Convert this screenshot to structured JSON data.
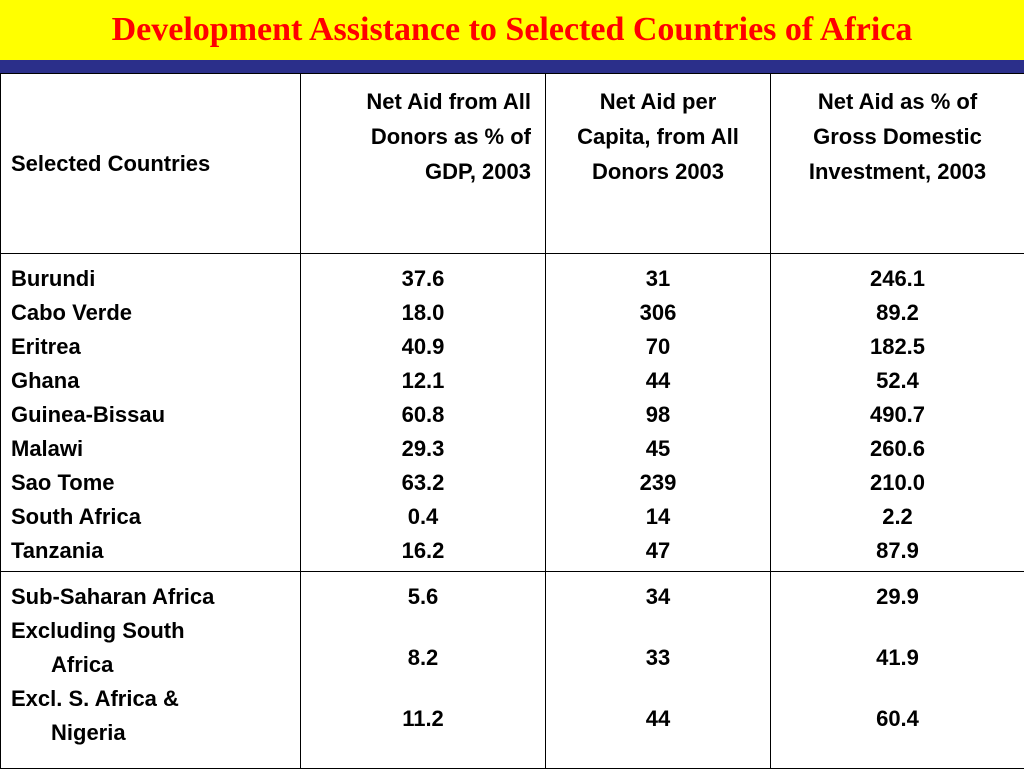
{
  "title": "Development Assistance to Selected Countries of Africa",
  "colors": {
    "title_bg": "#ffff00",
    "title_text": "#ff0000",
    "rule": "#2b2f8a"
  },
  "headers": {
    "col1": "Selected Countries",
    "col2": "Net Aid from All Donors as % of GDP, 2003",
    "col3": "Net Aid per Capita, from All Donors 2003",
    "col4": "Net Aid as % of Gross Domestic Investment, 2003"
  },
  "rows": [
    {
      "country": "Burundi",
      "gdp_pct": "37.6",
      "per_capita": "31",
      "gdi_pct": "246.1"
    },
    {
      "country": "Cabo Verde",
      "gdp_pct": "18.0",
      "per_capita": "306",
      "gdi_pct": "89.2"
    },
    {
      "country": "Eritrea",
      "gdp_pct": "40.9",
      "per_capita": "70",
      "gdi_pct": "182.5"
    },
    {
      "country": "Ghana",
      "gdp_pct": "12.1",
      "per_capita": "44",
      "gdi_pct": "52.4"
    },
    {
      "country": "Guinea-Bissau",
      "gdp_pct": "60.8",
      "per_capita": "98",
      "gdi_pct": "490.7"
    },
    {
      "country": "Malawi",
      "gdp_pct": "29.3",
      "per_capita": "45",
      "gdi_pct": "260.6"
    },
    {
      "country": "Sao Tome",
      "gdp_pct": "63.2",
      "per_capita": "239",
      "gdi_pct": "210.0"
    },
    {
      "country": "South Africa",
      "gdp_pct": "0.4",
      "per_capita": "14",
      "gdi_pct": "2.2"
    },
    {
      "country": "Tanzania",
      "gdp_pct": "16.2",
      "per_capita": "47",
      "gdi_pct": "87.9"
    }
  ],
  "aggregates": [
    {
      "label_first": "Sub-Saharan Africa",
      "label_second": "",
      "gdp_pct": "5.6",
      "per_capita": "34",
      "gdi_pct": "29.9"
    },
    {
      "label_first": "Excluding South",
      "label_second": "Africa",
      "gdp_pct": "8.2",
      "per_capita": "33",
      "gdi_pct": "41.9"
    },
    {
      "label_first": "Excl. S. Africa &",
      "label_second": "Nigeria",
      "gdp_pct": "11.2",
      "per_capita": "44",
      "gdi_pct": "60.4"
    }
  ]
}
